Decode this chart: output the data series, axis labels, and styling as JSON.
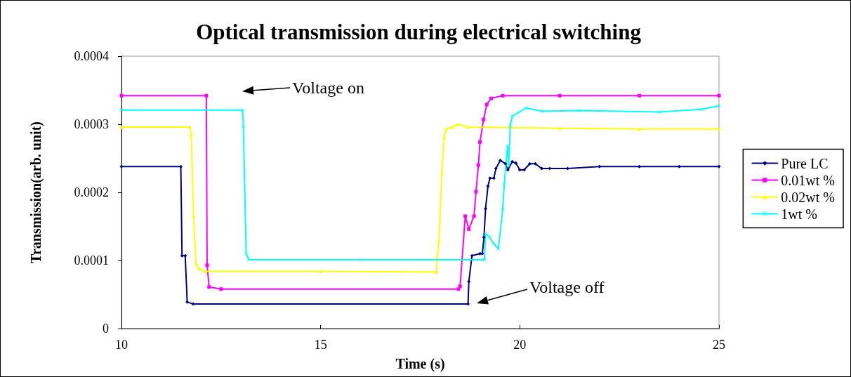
{
  "chart_data": {
    "type": "line",
    "title": "Optical transmission during electrical switching",
    "xlabel": "Time (s)",
    "ylabel": "Transmission(arb. unit)",
    "xlim": [
      10,
      25
    ],
    "xticks": [
      10,
      15,
      20,
      25
    ],
    "ylim": [
      0,
      0.0004
    ],
    "yticks": [
      0,
      0.0001,
      0.0002,
      0.0003,
      0.0004
    ],
    "grid": false,
    "legend": "right",
    "line_style": "solid",
    "series": [
      {
        "name": "Pure LC",
        "color": "#000080",
        "marker": "diamond",
        "x": [
          10,
          11.49,
          11.52,
          11.6,
          11.65,
          11.8,
          18.7,
          18.72,
          18.8,
          19.0,
          19.06,
          19.1,
          19.14,
          19.2,
          19.25,
          19.35,
          19.4,
          19.51,
          19.64,
          19.7,
          19.81,
          19.9,
          20.0,
          20.11,
          20.25,
          20.39,
          20.55,
          20.75,
          21.2,
          22,
          23,
          24,
          25
        ],
        "values": [
          0.000238,
          0.000238,
          0.000107,
          0.000107,
          3.9e-05,
          3.6e-05,
          3.6e-05,
          6.9e-05,
          0.000107,
          0.00011,
          0.00011,
          0.000134,
          0.000176,
          0.000209,
          0.000221,
          0.000221,
          0.000235,
          0.000247,
          0.000242,
          0.000233,
          0.000245,
          0.000243,
          0.000233,
          0.000233,
          0.000242,
          0.000242,
          0.000235,
          0.000235,
          0.000235,
          0.000238,
          0.000238,
          0.000238,
          0.000238
        ]
      },
      {
        "name": "0.01wt %",
        "color": "#ff00ff",
        "marker": "square",
        "x": [
          10,
          12.13,
          12.15,
          12.2,
          12.5,
          18.46,
          18.5,
          18.63,
          18.72,
          18.85,
          18.9,
          18.96,
          19.0,
          19.09,
          19.17,
          19.28,
          19.57,
          21,
          23,
          25
        ],
        "values": [
          0.000342,
          0.000342,
          9.3e-05,
          6.1e-05,
          5.8e-05,
          5.8e-05,
          6.2e-05,
          0.000165,
          0.000146,
          0.000165,
          0.000201,
          0.00024,
          0.000274,
          0.000307,
          0.000329,
          0.000338,
          0.000342,
          0.000342,
          0.000342,
          0.000342
        ]
      },
      {
        "name": "0.02wt %",
        "color": "#ffff00",
        "marker": "triangle",
        "x": [
          10,
          11.72,
          11.75,
          11.81,
          11.87,
          11.95,
          12.1,
          15,
          17.91,
          17.93,
          17.97,
          18.04,
          18.1,
          18.15,
          18.3,
          18.45,
          18.7,
          21,
          23,
          25
        ],
        "values": [
          0.000296,
          0.000296,
          0.000285,
          0.000166,
          9.5e-05,
          8.8e-05,
          8.4e-05,
          8.4e-05,
          8.3e-05,
          0.000105,
          0.000129,
          0.000228,
          0.000281,
          0.000293,
          0.000296,
          0.0003,
          0.000296,
          0.000294,
          0.000293,
          0.000293
        ]
      },
      {
        "name": "1wt %",
        "color": "#00ffff",
        "marker": "cross",
        "x": [
          10,
          13.04,
          13.06,
          13.13,
          13.2,
          16,
          19.11,
          19.14,
          19.23,
          19.34,
          19.46,
          19.57,
          19.61,
          19.69,
          19.72,
          19.76,
          19.81,
          20.16,
          20.57,
          21.5,
          23.5,
          24.56,
          25
        ],
        "values": [
          0.000321,
          0.000321,
          0.000297,
          0.00011,
          0.000101,
          0.000101,
          0.000101,
          0.000139,
          0.000135,
          0.000125,
          0.000117,
          0.000175,
          0.000212,
          0.000268,
          0.00024,
          0.000298,
          0.000312,
          0.000324,
          0.000319,
          0.00032,
          0.000318,
          0.000322,
          0.000327
        ]
      }
    ],
    "annotations": [
      "Voltage on",
      "Voltage off"
    ]
  }
}
